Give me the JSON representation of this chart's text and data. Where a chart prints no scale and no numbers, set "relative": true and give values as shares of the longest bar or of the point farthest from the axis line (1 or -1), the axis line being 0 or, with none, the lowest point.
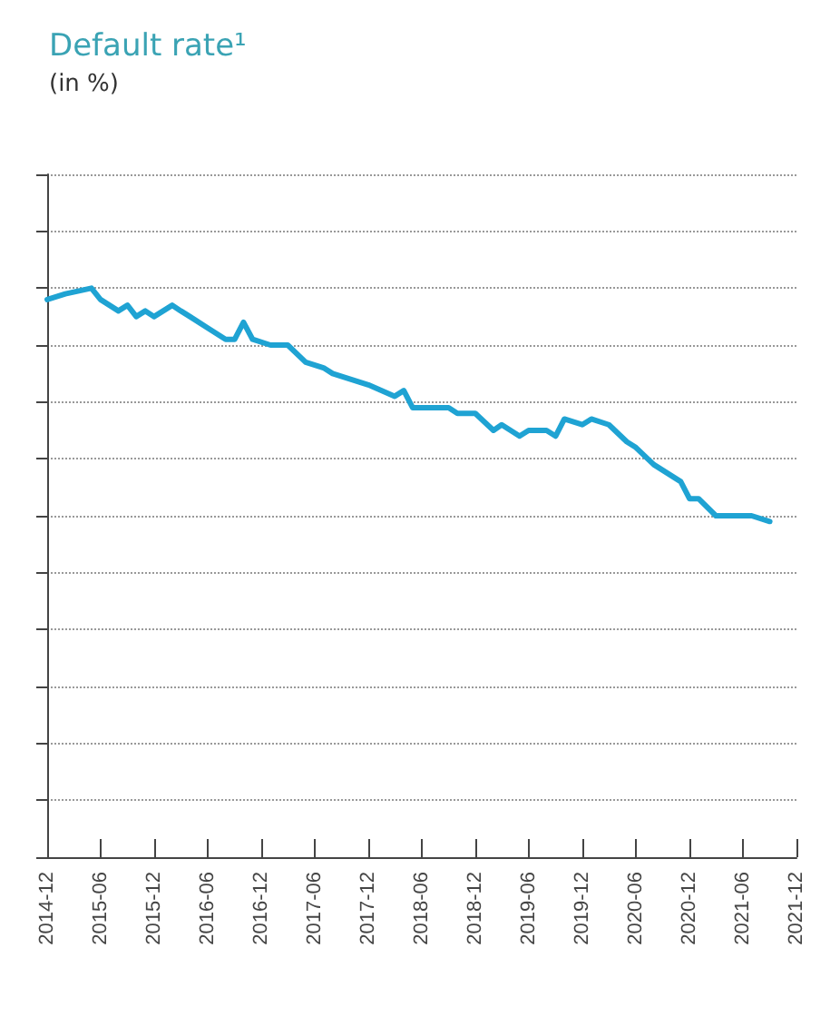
{
  "chart_data": {
    "type": "line",
    "title": "Default rate¹",
    "subtitle": "(in %)",
    "relative": true,
    "grid": "y",
    "marker": "none",
    "line_style": "solid",
    "x": [
      "2014-12",
      "2015-02",
      "2015-05",
      "2015-06",
      "2015-08",
      "2015-09",
      "2015-10",
      "2015-11",
      "2015-12",
      "2016-02",
      "2016-03",
      "2016-04",
      "2016-06",
      "2016-08",
      "2016-09",
      "2016-10",
      "2016-11",
      "2017-01",
      "2017-03",
      "2017-05",
      "2017-07",
      "2017-08",
      "2017-10",
      "2017-12",
      "2018-03",
      "2018-04",
      "2018-05",
      "2018-09",
      "2018-10",
      "2018-12",
      "2019-02",
      "2019-03",
      "2019-05",
      "2019-06",
      "2019-08",
      "2019-09",
      "2019-10",
      "2019-12",
      "2020-01",
      "2020-03",
      "2020-05",
      "2020-06",
      "2020-08",
      "2020-11",
      "2020-12",
      "2021-01",
      "2021-03",
      "2021-07",
      "2021-09"
    ],
    "series": [
      {
        "color": "#1fa3d3",
        "values": [
          0.98,
          0.99,
          1,
          0.98,
          0.96,
          0.97,
          0.95,
          0.96,
          0.95,
          0.97,
          0.96,
          0.95,
          0.93,
          0.91,
          0.91,
          0.94,
          0.91,
          0.9,
          0.9,
          0.87,
          0.86,
          0.85,
          0.84,
          0.83,
          0.81,
          0.82,
          0.79,
          0.79,
          0.78,
          0.78,
          0.75,
          0.76,
          0.74,
          0.75,
          0.75,
          0.74,
          0.77,
          0.76,
          0.77,
          0.76,
          0.73,
          0.72,
          0.69,
          0.66,
          0.63,
          0.63,
          0.6,
          0.6,
          0.59
        ]
      }
    ],
    "xlim": [
      "2014-12",
      "2021-12"
    ],
    "xticks": [
      "2014-12",
      "2015-06",
      "2015-12",
      "2016-06",
      "2016-12",
      "2017-06",
      "2017-12",
      "2018-06",
      "2018-12",
      "2019-06",
      "2019-12",
      "2020-06",
      "2020-12",
      "2021-06",
      "2021-12"
    ]
  }
}
